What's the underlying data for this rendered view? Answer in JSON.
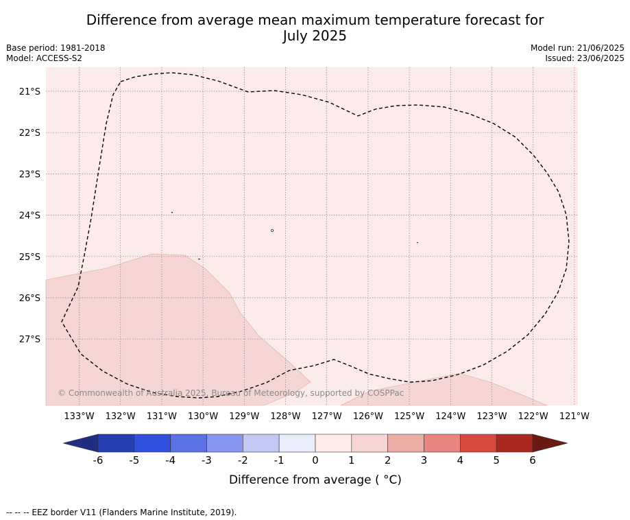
{
  "title_line1": "Difference from average mean maximum temperature forecast for",
  "title_line2": "July 2025",
  "base_period": "Base period: 1981-2018",
  "model": "Model: ACCESS-S2",
  "model_run": "Model run: 21/06/2025",
  "issued": "Issued: 23/06/2025",
  "copyright": "© Commonwealth of Australia 2025, Bureau of Meteorology, supported by COSPPac",
  "footnote": "--  --  -- EEZ border V11 (Flanders Marine Institute, 2019).",
  "map": {
    "lon_labels": [
      "133°W",
      "132°W",
      "131°W",
      "130°W",
      "129°W",
      "128°W",
      "127°W",
      "126°W",
      "125°W",
      "124°W",
      "123°W",
      "122°W",
      "121°W"
    ],
    "lat_labels": [
      "21°S",
      "22°S",
      "23°S",
      "24°S",
      "25°S",
      "26°S",
      "27°S"
    ],
    "background_class": "0 to 1",
    "patch_class": "1 to 2",
    "colors": {
      "class_0_1": "#fbebea",
      "class_1_2": "#f5d6d5",
      "eez_line": "#000000"
    }
  },
  "colorbar": {
    "label": "Difference from average ( °C)",
    "ticks": [
      "-6",
      "-5",
      "-4",
      "-3",
      "-2",
      "-1",
      "0",
      "1",
      "2",
      "3",
      "4",
      "5",
      "6"
    ],
    "colors": [
      "#1f2e80",
      "#253fb0",
      "#3150dd",
      "#5a72e4",
      "#8796ec",
      "#c1c8f4",
      "#e9ecfb",
      "#fdecea",
      "#f5d6d5",
      "#eeaea8",
      "#e7857e",
      "#d84a40",
      "#a92920",
      "#6b1a12"
    ]
  }
}
